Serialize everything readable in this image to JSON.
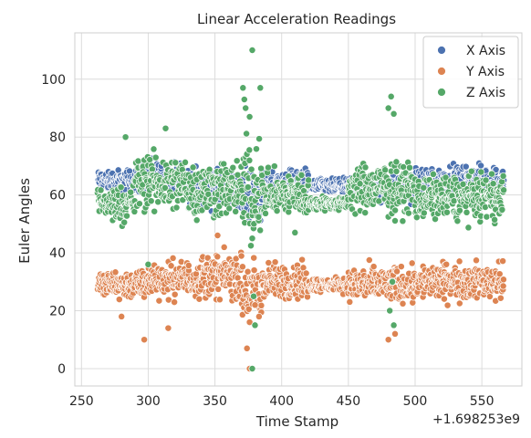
{
  "chart_data": {
    "type": "scatter",
    "title": "Linear Acceleration Readings",
    "xlabel": "Time Stamp",
    "ylabel": "Euler Angles",
    "x_offset_label": "+1.698253e9",
    "xlim": [
      245,
      580
    ],
    "ylim": [
      -6,
      116
    ],
    "x_ticks": [
      250,
      300,
      350,
      400,
      450,
      500,
      550
    ],
    "y_ticks": [
      0,
      20,
      40,
      60,
      80,
      100
    ],
    "grid": true,
    "legend_position": "top-right",
    "series": [
      {
        "name": "X Axis",
        "color": "#4c72b0",
        "segments": [
          {
            "x_start": 262,
            "x_end": 290,
            "center": 65,
            "spread": 3
          },
          {
            "x_start": 290,
            "x_end": 330,
            "center": 66,
            "spread": 4
          },
          {
            "x_start": 330,
            "x_end": 370,
            "center": 62,
            "spread": 5
          },
          {
            "x_start": 370,
            "x_end": 385,
            "center": 60,
            "spread": 8
          },
          {
            "x_start": 385,
            "x_end": 420,
            "center": 64,
            "spread": 4
          },
          {
            "x_start": 420,
            "x_end": 450,
            "center": 63,
            "spread": 2
          },
          {
            "x_start": 450,
            "x_end": 500,
            "center": 62,
            "spread": 4
          },
          {
            "x_start": 500,
            "x_end": 566,
            "center": 65,
            "spread": 4
          }
        ]
      },
      {
        "name": "Y Axis",
        "color": "#dd8452",
        "segments": [
          {
            "x_start": 262,
            "x_end": 300,
            "center": 29,
            "spread": 4
          },
          {
            "x_start": 300,
            "x_end": 340,
            "center": 31,
            "spread": 5
          },
          {
            "x_start": 340,
            "x_end": 370,
            "center": 32,
            "spread": 6
          },
          {
            "x_start": 370,
            "x_end": 385,
            "center": 26,
            "spread": 10
          },
          {
            "x_start": 385,
            "x_end": 420,
            "center": 30,
            "spread": 5
          },
          {
            "x_start": 420,
            "x_end": 450,
            "center": 29,
            "spread": 2
          },
          {
            "x_start": 450,
            "x_end": 500,
            "center": 29,
            "spread": 5
          },
          {
            "x_start": 500,
            "x_end": 566,
            "center": 30,
            "spread": 5
          }
        ],
        "outliers": [
          [
            280,
            18
          ],
          [
            297,
            10
          ],
          [
            315,
            14
          ],
          [
            352,
            46
          ],
          [
            374,
            7
          ],
          [
            376,
            0
          ],
          [
            378,
            0
          ],
          [
            380,
            22
          ],
          [
            383,
            18
          ],
          [
            480,
            10
          ],
          [
            485,
            12
          ]
        ]
      },
      {
        "name": "Z Axis",
        "color": "#55a868",
        "segments": [
          {
            "x_start": 262,
            "x_end": 290,
            "center": 57,
            "spread": 5
          },
          {
            "x_start": 290,
            "x_end": 330,
            "center": 64,
            "spread": 8
          },
          {
            "x_start": 330,
            "x_end": 370,
            "center": 62,
            "spread": 8
          },
          {
            "x_start": 370,
            "x_end": 385,
            "center": 62,
            "spread": 14
          },
          {
            "x_start": 385,
            "x_end": 420,
            "center": 60,
            "spread": 6
          },
          {
            "x_start": 420,
            "x_end": 450,
            "center": 57,
            "spread": 2
          },
          {
            "x_start": 450,
            "x_end": 500,
            "center": 62,
            "spread": 7
          },
          {
            "x_start": 500,
            "x_end": 566,
            "center": 59,
            "spread": 6
          }
        ],
        "outliers": [
          [
            283,
            80
          ],
          [
            313,
            83
          ],
          [
            371,
            97
          ],
          [
            372,
            93
          ],
          [
            373,
            90
          ],
          [
            378,
            110
          ],
          [
            384,
            97
          ],
          [
            376,
            87
          ],
          [
            378,
            45
          ],
          [
            379,
            25
          ],
          [
            380,
            15
          ],
          [
            378,
            0
          ],
          [
            480,
            90
          ],
          [
            482,
            94
          ],
          [
            484,
            88
          ],
          [
            483,
            30
          ],
          [
            481,
            20
          ],
          [
            484,
            15
          ],
          [
            300,
            36
          ],
          [
            410,
            47
          ]
        ]
      }
    ]
  }
}
